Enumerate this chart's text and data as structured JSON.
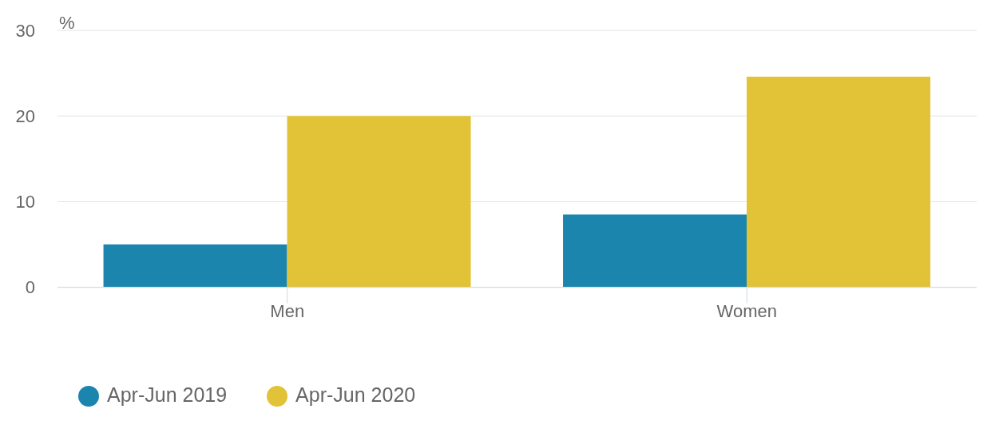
{
  "chart_data": {
    "type": "bar",
    "ylabel": "%",
    "categories": [
      "Men",
      "Women"
    ],
    "series": [
      {
        "name": "Apr-Jun 2019",
        "color": "#1b85ad",
        "values": [
          5.0,
          8.5
        ]
      },
      {
        "name": "Apr-Jun 2020",
        "color": "#e2c236",
        "values": [
          20.0,
          24.6
        ]
      }
    ],
    "ylim": [
      0,
      30
    ],
    "yticks": [
      0,
      10,
      20,
      30
    ],
    "grid": "y",
    "legend": "bottom left"
  }
}
